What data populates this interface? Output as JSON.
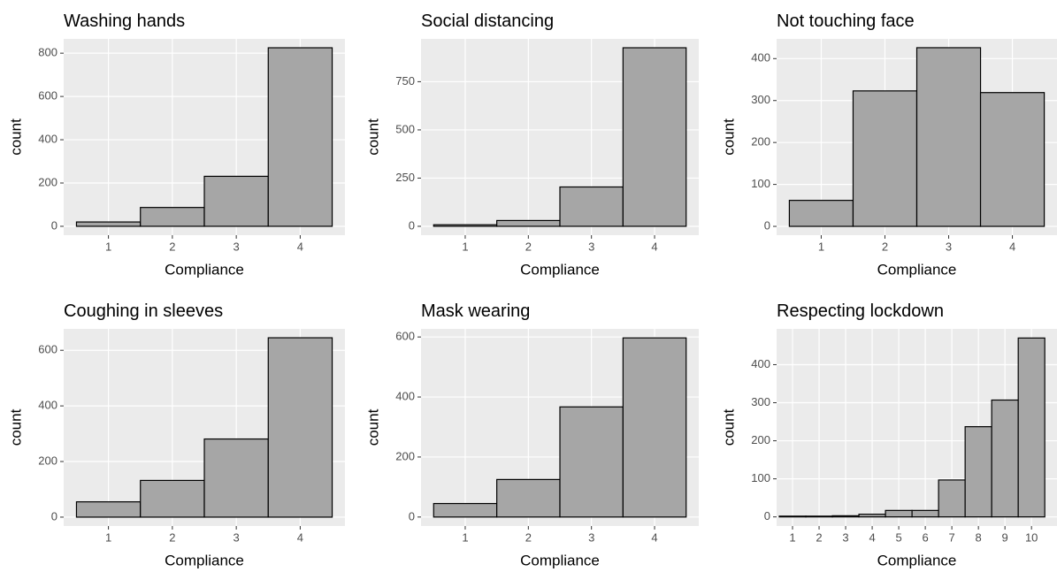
{
  "chart_data": [
    {
      "type": "histogram",
      "title": "Washing hands",
      "x_label": "Compliance",
      "y_label": "count",
      "color": "#a6a6a6",
      "bins": [
        0.5,
        1.5,
        2.5,
        3.5,
        4.5
      ],
      "values": [
        20,
        87,
        231,
        825
      ],
      "xlim": [
        0.3,
        4.7
      ],
      "xticks": [
        1,
        2,
        3,
        4
      ],
      "ylim": [
        -41,
        866
      ],
      "yticks": [
        0,
        200,
        400,
        600,
        800
      ],
      "grid": true
    },
    {
      "type": "histogram",
      "title": "Social distancing",
      "x_label": "Compliance",
      "y_label": "count",
      "color": "#a6a6a6",
      "bins": [
        0.5,
        1.5,
        2.5,
        3.5,
        4.5
      ],
      "values": [
        8,
        30,
        204,
        926
      ],
      "xlim": [
        0.3,
        4.7
      ],
      "xticks": [
        1,
        2,
        3,
        4
      ],
      "ylim": [
        -46,
        972
      ],
      "yticks": [
        0,
        250,
        500,
        750
      ],
      "grid": true
    },
    {
      "type": "histogram",
      "title": "Not touching face",
      "x_label": "Compliance",
      "y_label": "count",
      "color": "#a6a6a6",
      "bins": [
        0.5,
        1.5,
        2.5,
        3.5,
        4.5
      ],
      "values": [
        62,
        323,
        426,
        319
      ],
      "xlim": [
        0.3,
        4.7
      ],
      "xticks": [
        1,
        2,
        3,
        4
      ],
      "ylim": [
        -21,
        447
      ],
      "yticks": [
        0,
        100,
        200,
        300,
        400
      ],
      "grid": true
    },
    {
      "type": "histogram",
      "title": "Coughing in sleeves",
      "x_label": "Compliance",
      "y_label": "count",
      "color": "#a6a6a6",
      "bins": [
        0.5,
        1.5,
        2.5,
        3.5,
        4.5
      ],
      "values": [
        55,
        132,
        281,
        645
      ],
      "xlim": [
        0.3,
        4.7
      ],
      "xticks": [
        1,
        2,
        3,
        4
      ],
      "ylim": [
        -32,
        677
      ],
      "yticks": [
        0,
        200,
        400,
        600
      ],
      "grid": true
    },
    {
      "type": "histogram",
      "title": "Mask wearing",
      "x_label": "Compliance",
      "y_label": "count",
      "color": "#a6a6a6",
      "bins": [
        0.5,
        1.5,
        2.5,
        3.5,
        4.5
      ],
      "values": [
        45,
        125,
        367,
        597
      ],
      "xlim": [
        0.3,
        4.7
      ],
      "xticks": [
        1,
        2,
        3,
        4
      ],
      "ylim": [
        -30,
        627
      ],
      "yticks": [
        0,
        200,
        400,
        600
      ],
      "grid": true
    },
    {
      "type": "histogram",
      "title": "Respecting lockdown",
      "x_label": "Compliance",
      "y_label": "count",
      "color": "#a6a6a6",
      "bins": [
        0.5,
        1.5,
        2.5,
        3.5,
        4.5,
        5.5,
        6.5,
        7.5,
        8.5,
        9.5,
        10.5
      ],
      "values": [
        2,
        2,
        3,
        7,
        17,
        17,
        97,
        237,
        307,
        470
      ],
      "xlim": [
        0.4,
        10.96
      ],
      "xticks": [
        1,
        2,
        3,
        4,
        5,
        6,
        7,
        8,
        9,
        10
      ],
      "ylim": [
        -24,
        494
      ],
      "yticks": [
        0,
        100,
        200,
        300,
        400
      ],
      "grid": true
    }
  ]
}
